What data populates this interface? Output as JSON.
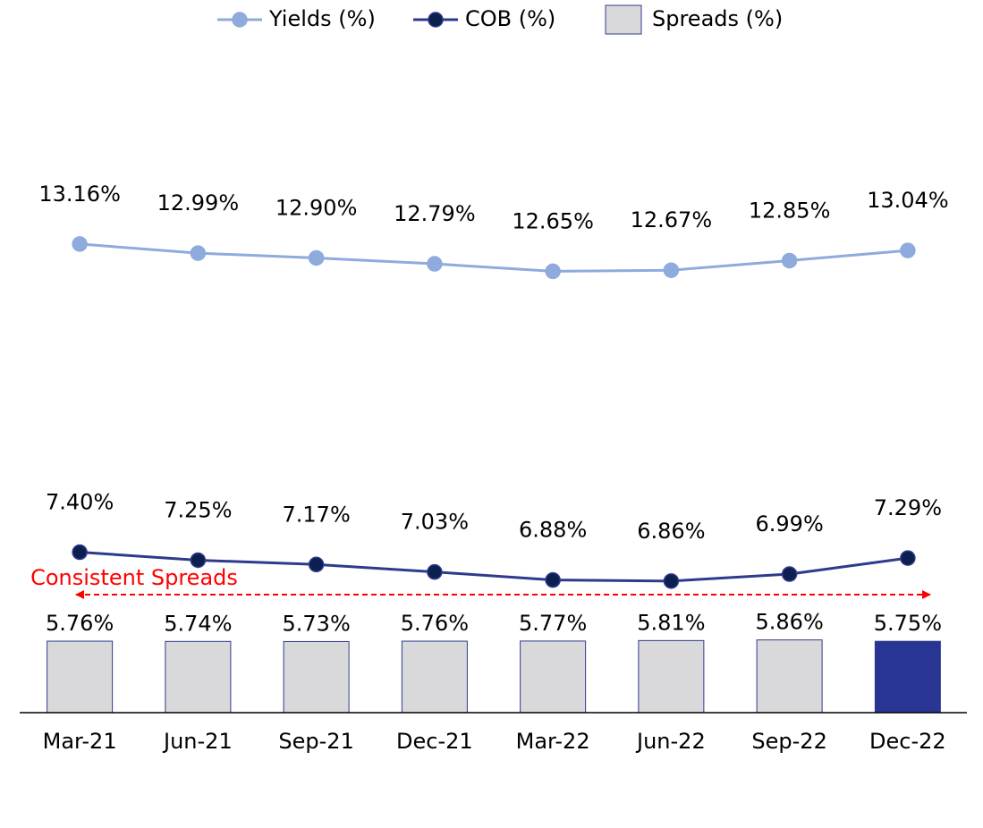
{
  "chart_data": {
    "type": "combo",
    "categories": [
      "Mar-21",
      "Jun-21",
      "Sep-21",
      "Dec-21",
      "Mar-22",
      "Jun-22",
      "Sep-22",
      "Dec-22"
    ],
    "ylim": [
      0,
      50
    ],
    "y2lim": [
      4.4,
      16
    ],
    "legend": "top",
    "series": [
      {
        "name": "Yields (%)",
        "type": "line",
        "axis": "y2",
        "color": "#8faadc",
        "marker_color": "#8faadc",
        "values": [
          13.16,
          12.99,
          12.9,
          12.79,
          12.65,
          12.67,
          12.85,
          13.04
        ],
        "value_labels": [
          "13.16%",
          "12.99%",
          "12.90%",
          "12.79%",
          "12.65%",
          "12.67%",
          "12.85%",
          "13.04%"
        ]
      },
      {
        "name": "COB (%)",
        "type": "line",
        "axis": "y2",
        "color": "#2e3a8c",
        "marker_color": "#0d1f4f",
        "values": [
          7.4,
          7.25,
          7.17,
          7.03,
          6.88,
          6.86,
          6.99,
          7.29
        ],
        "value_labels": [
          "7.40%",
          "7.25%",
          "7.17%",
          "7.03%",
          "6.88%",
          "6.86%",
          "6.99%",
          "7.29%"
        ]
      },
      {
        "name": "Spreads (%)",
        "type": "bar",
        "color": "#d9d9db",
        "edge_color": "#2e3a8c",
        "colors": [
          "#d9d9db",
          "#d9d9db",
          "#d9d9db",
          "#d9d9db",
          "#d9d9db",
          "#d9d9db",
          "#d9d9db",
          "#283593"
        ],
        "values": [
          5.76,
          5.74,
          5.73,
          5.76,
          5.77,
          5.81,
          5.86,
          5.75
        ],
        "value_labels": [
          "5.76%",
          "5.74%",
          "5.73%",
          "5.76%",
          "5.77%",
          "5.81%",
          "5.86%",
          "5.75%"
        ]
      }
    ],
    "annotation": {
      "text": "Consistent Spreads",
      "color": "#ff0000"
    }
  }
}
